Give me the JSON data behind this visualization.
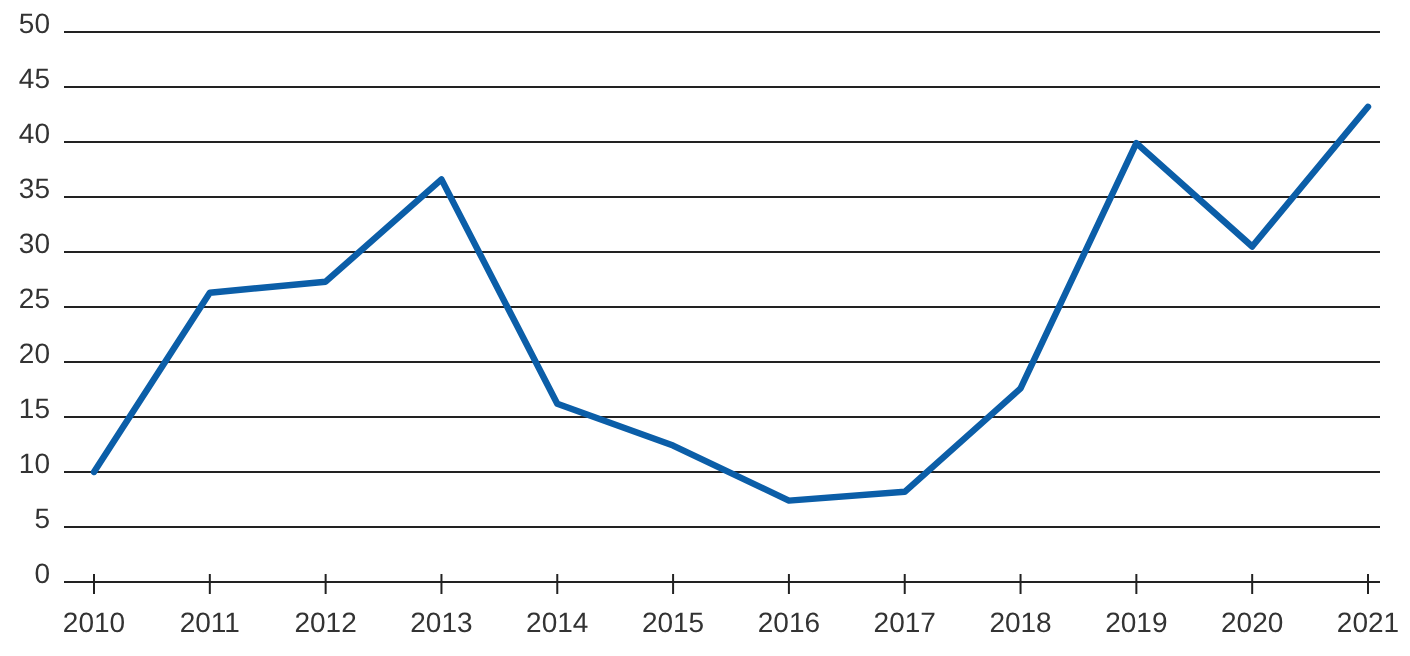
{
  "chart_data": {
    "type": "line",
    "categories": [
      "2010",
      "2011",
      "2012",
      "2013",
      "2014",
      "2015",
      "2016",
      "2017",
      "2018",
      "2019",
      "2020",
      "2021"
    ],
    "series": [
      {
        "color": "#0b5ea8",
        "values": [
          10,
          26.3,
          27.3,
          36.6,
          16.2,
          12.4,
          7.4,
          8.2,
          17.6,
          39.9,
          30.5,
          43.2
        ]
      }
    ],
    "ylim": [
      0,
      50
    ],
    "yticks": [
      0,
      5,
      10,
      15,
      20,
      25,
      30,
      35,
      40,
      45,
      50
    ],
    "grid": "y",
    "marker": "none",
    "line_style": "solid"
  }
}
